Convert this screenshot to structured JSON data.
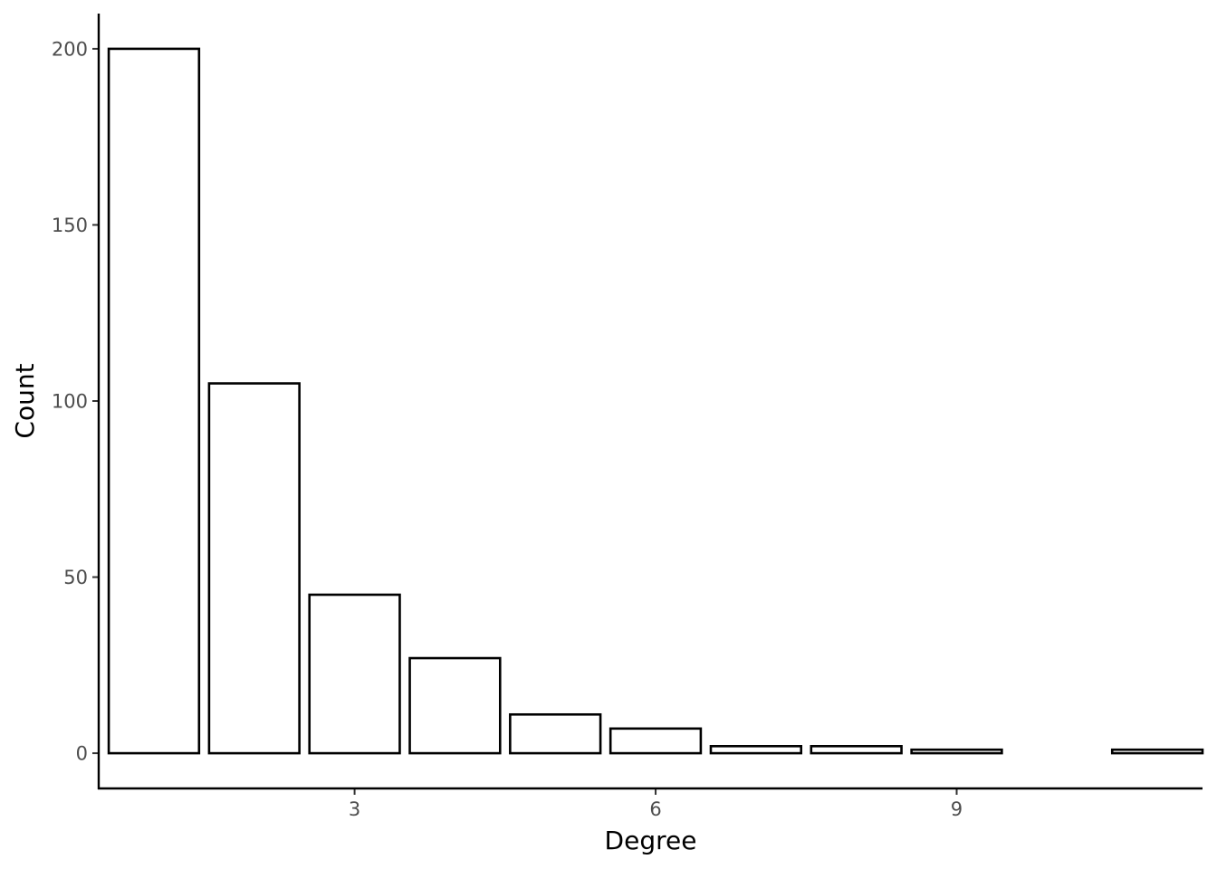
{
  "chart_data": {
    "type": "bar",
    "title": "",
    "xlabel": "Degree",
    "ylabel": "Count",
    "x": [
      1,
      2,
      3,
      4,
      5,
      6,
      7,
      8,
      9,
      11
    ],
    "values": [
      200,
      105,
      45,
      27,
      11,
      7,
      2,
      2,
      1,
      1
    ],
    "xlim": [
      0.45,
      11.45
    ],
    "ylim": [
      -10,
      210
    ],
    "xticks": [
      3,
      6,
      9
    ],
    "xtick_labels": [
      "3",
      "6",
      "9"
    ],
    "yticks": [
      0,
      50,
      100,
      150,
      200
    ],
    "ytick_labels": [
      "0",
      "50",
      "100",
      "150",
      "200"
    ],
    "grid": false,
    "legend": "none",
    "colors": {
      "bar_fill": "#ffffff",
      "bar_stroke": "#000000",
      "axis": "#000000",
      "tick_label": "#4d4d4d"
    }
  }
}
